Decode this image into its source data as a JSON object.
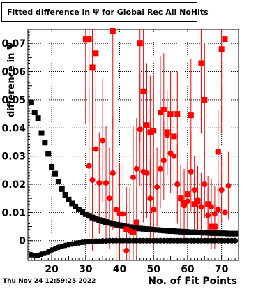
{
  "chart_data": {
    "type": "scatter",
    "title": "Fitted difference in  Ψ  for Global Rec All NoHits",
    "xlabel": "No. of Fit Points",
    "ylabel": "difference in Ψ",
    "xlim": [
      13,
      75
    ],
    "ylim": [
      -0.007,
      0.075
    ],
    "x_ticks": [
      20,
      30,
      40,
      50,
      60,
      70
    ],
    "y_ticks": [
      0,
      0.01,
      0.02,
      0.03,
      0.04,
      0.05,
      0.06,
      0.07
    ],
    "y_tick_labels": [
      "0",
      "0.01",
      "0.02",
      "0.03",
      "0.04",
      "0.05",
      "0.06",
      "0.07"
    ],
    "x_tick_labels": [
      "20",
      "30",
      "40",
      "50",
      "60",
      "70"
    ],
    "grid": true,
    "footer": "Thu Nov 24 12:59:25 2022",
    "series": [
      {
        "marker": "square",
        "color": "#000000",
        "points": [
          [
            14,
            0.049
          ],
          [
            15,
            0.0455
          ],
          [
            16,
            0.0435
          ],
          [
            17,
            0.0382
          ],
          [
            18,
            0.0348
          ],
          [
            19,
            0.0308
          ],
          [
            20,
            0.0262
          ],
          [
            21,
            0.0238
          ],
          [
            22,
            0.021
          ],
          [
            23,
            0.0183
          ],
          [
            24,
            0.0163
          ],
          [
            25,
            0.0146
          ],
          [
            26,
            0.0132
          ],
          [
            27,
            0.0121
          ],
          [
            28,
            0.0111
          ],
          [
            29,
            0.0101
          ],
          [
            30,
            0.0094
          ],
          [
            31,
            0.0088
          ],
          [
            32,
            0.0082
          ],
          [
            33,
            0.0077
          ],
          [
            34,
            0.0073
          ],
          [
            35,
            0.0069
          ],
          [
            36,
            0.0066
          ],
          [
            37,
            0.0063
          ],
          [
            38,
            0.006
          ],
          [
            39,
            0.0057
          ],
          [
            40,
            0.0055
          ],
          [
            41,
            0.0052
          ],
          [
            42,
            0.005
          ],
          [
            43,
            0.0048
          ],
          [
            44,
            0.0046
          ],
          [
            45,
            0.0044
          ],
          [
            46,
            0.0043
          ],
          [
            47,
            0.0042
          ],
          [
            48,
            0.0041
          ],
          [
            49,
            0.004
          ],
          [
            50,
            0.0039
          ],
          [
            51,
            0.0038
          ],
          [
            52,
            0.0037
          ],
          [
            53,
            0.0036
          ],
          [
            54,
            0.0035
          ],
          [
            55,
            0.0034
          ],
          [
            56,
            0.0034
          ],
          [
            57,
            0.0033
          ],
          [
            58,
            0.0032
          ],
          [
            59,
            0.0032
          ],
          [
            60,
            0.0031
          ],
          [
            61,
            0.003
          ],
          [
            62,
            0.003
          ],
          [
            63,
            0.0029
          ],
          [
            64,
            0.0029
          ],
          [
            65,
            0.0028
          ],
          [
            66,
            0.0028
          ],
          [
            67,
            0.0027
          ],
          [
            68,
            0.0027
          ],
          [
            69,
            0.0027
          ],
          [
            70,
            0.0026
          ],
          [
            71,
            0.0026
          ],
          [
            72,
            0.0025
          ],
          [
            73,
            0.0025
          ],
          [
            74,
            0.0025
          ]
        ]
      },
      {
        "marker": "circle",
        "color": "#000000",
        "points": [
          [
            14,
            -0.005
          ],
          [
            15,
            -0.0053
          ],
          [
            16,
            -0.0052
          ],
          [
            17,
            -0.0048
          ],
          [
            18,
            -0.0045
          ],
          [
            19,
            -0.004
          ],
          [
            20,
            -0.0033
          ],
          [
            21,
            -0.0029
          ],
          [
            22,
            -0.0024
          ],
          [
            23,
            -0.002
          ],
          [
            24,
            -0.0017
          ],
          [
            25,
            -0.0014
          ],
          [
            26,
            -0.0012
          ],
          [
            27,
            -0.001
          ],
          [
            28,
            -0.0008
          ],
          [
            29,
            -0.0006
          ],
          [
            30,
            -0.0005
          ],
          [
            31,
            -0.0004
          ],
          [
            32,
            -0.0003
          ],
          [
            33,
            -0.0002
          ],
          [
            34,
            -0.0002
          ],
          [
            35,
            -0.0001
          ],
          [
            36,
            -0.0001
          ],
          [
            37,
            0.0
          ],
          [
            38,
            0.0
          ],
          [
            39,
            0.0
          ],
          [
            40,
            0.0
          ],
          [
            41,
            0.0
          ],
          [
            42,
            0.0
          ],
          [
            43,
            0.0
          ],
          [
            44,
            0.0
          ],
          [
            45,
            0.0
          ],
          [
            46,
            0.0
          ],
          [
            47,
            0.0
          ],
          [
            48,
            0.0
          ],
          [
            49,
            0.0
          ],
          [
            50,
            0.0
          ],
          [
            51,
            0.0
          ],
          [
            52,
            0.0
          ],
          [
            53,
            0.0
          ],
          [
            54,
            0.0
          ],
          [
            55,
            0.0
          ],
          [
            56,
            0.0
          ],
          [
            57,
            0.0
          ],
          [
            58,
            0.0
          ],
          [
            59,
            0.0
          ],
          [
            60,
            0.0
          ],
          [
            61,
            0.0
          ],
          [
            62,
            0.0
          ],
          [
            63,
            0.0
          ],
          [
            64,
            0.0
          ],
          [
            65,
            0.0
          ],
          [
            66,
            0.0
          ],
          [
            67,
            0.0
          ],
          [
            68,
            0.0
          ],
          [
            69,
            0.0
          ],
          [
            70,
            0.0
          ],
          [
            71,
            0.0
          ],
          [
            72,
            0.0
          ],
          [
            73,
            0.0
          ],
          [
            74,
            0.0
          ]
        ]
      },
      {
        "marker": "square",
        "color": "#ff0000",
        "points": [
          [
            30,
            0.0715,
            0.03
          ],
          [
            31,
            0.0715,
            0.03
          ],
          [
            32,
            0.0615,
            0.025
          ],
          [
            33,
            0.0665,
            0.025
          ],
          [
            38,
            0.0745,
            0.035
          ],
          [
            42,
            0.004,
            0.015
          ],
          [
            44,
            0.003,
            0.012
          ],
          [
            45,
            0.0065,
            0.012
          ],
          [
            46,
            0.07,
            0.035
          ],
          [
            47,
            0.053,
            0.025
          ],
          [
            48,
            0.041,
            0.022
          ],
          [
            49,
            0.0385,
            0.02
          ],
          [
            50,
            0.039,
            0.02
          ],
          [
            52,
            0.0455,
            0.02
          ],
          [
            53,
            0.0465,
            0.02
          ],
          [
            54,
            0.0385,
            0.015
          ],
          [
            55,
            0.045,
            0.015
          ],
          [
            56,
            0.037,
            0.015
          ],
          [
            57,
            0.045,
            0.015
          ],
          [
            58,
            0.015,
            0.012
          ],
          [
            59,
            0.0135,
            0.012
          ],
          [
            60,
            0.0165,
            0.012
          ],
          [
            61,
            0.0445,
            0.02
          ],
          [
            62,
            0.013,
            0.01
          ],
          [
            63,
            0.014,
            0.012
          ],
          [
            64,
            0.063,
            0.025
          ],
          [
            65,
            0.05,
            0.02
          ],
          [
            66,
            0.013,
            0.01
          ],
          [
            67,
            0.005,
            0.008
          ],
          [
            68,
            0.005,
            0.008
          ],
          [
            69,
            0.0315,
            0.015
          ],
          [
            70,
            0.068,
            0.03
          ],
          [
            71,
            0.0715,
            0.04
          ]
        ]
      },
      {
        "marker": "circle",
        "color": "#ff0000",
        "points": [
          [
            31,
            0.0265,
            0.028
          ],
          [
            32,
            0.0215,
            0.025
          ],
          [
            33,
            0.0325,
            0.022
          ],
          [
            34,
            0.0205,
            0.018
          ],
          [
            35,
            0.0355,
            0.022
          ],
          [
            36,
            0.0205,
            0.02
          ],
          [
            37,
            0.015,
            0.018
          ],
          [
            38,
            0.024,
            0.02
          ],
          [
            39,
            0.011,
            0.02
          ],
          [
            40,
            0.0095,
            0.018
          ],
          [
            41,
            0.0095,
            0.018
          ],
          [
            42,
            -0.0035,
            0.016
          ],
          [
            43,
            0.0035,
            0.015
          ],
          [
            44,
            0.0225,
            0.018
          ],
          [
            45,
            0.0255,
            0.018
          ],
          [
            46,
            0.0395,
            0.02
          ],
          [
            47,
            0.0245,
            0.018
          ],
          [
            48,
            0.024,
            0.016
          ],
          [
            49,
            0.015,
            0.014
          ],
          [
            50,
            0.011,
            0.014
          ],
          [
            51,
            0.019,
            0.014
          ],
          [
            52,
            0.0255,
            0.014
          ],
          [
            53,
            0.0285,
            0.014
          ],
          [
            54,
            0.0375,
            0.014
          ],
          [
            55,
            0.031,
            0.014
          ],
          [
            56,
            0.03,
            0.014
          ],
          [
            57,
            0.02,
            0.014
          ],
          [
            58,
            0.015,
            0.012
          ],
          [
            59,
            0.0125,
            0.012
          ],
          [
            60,
            0.014,
            0.012
          ],
          [
            61,
            0.0245,
            0.014
          ],
          [
            62,
            0.018,
            0.012
          ],
          [
            63,
            0.0145,
            0.012
          ],
          [
            64,
            0.012,
            0.012
          ],
          [
            65,
            0.02,
            0.012
          ],
          [
            66,
            0.009,
            0.01
          ],
          [
            67,
            0.012,
            0.01
          ],
          [
            68,
            0.0095,
            0.01
          ],
          [
            69,
            0.011,
            0.01
          ],
          [
            70,
            0.018,
            0.012
          ],
          [
            71,
            0.01,
            0.01
          ],
          [
            72,
            0.0195,
            0.012
          ]
        ]
      }
    ]
  }
}
